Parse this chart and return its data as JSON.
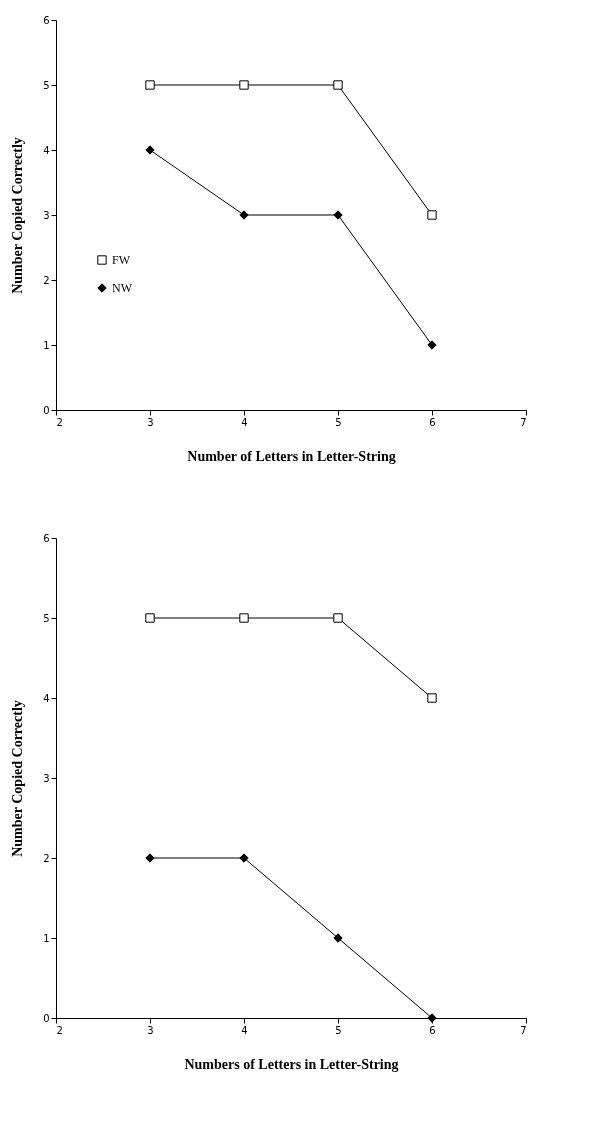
{
  "chart_data": [
    {
      "type": "line",
      "xlabel": "Number of Letters in Letter-String",
      "ylabel": "Number Copied Correctly",
      "xlim": [
        2,
        7
      ],
      "xticks": [
        2,
        3,
        4,
        5,
        6,
        7
      ],
      "ylim": [
        0,
        6
      ],
      "yticks": [
        0,
        1,
        2,
        3,
        4,
        5,
        6
      ],
      "grid": false,
      "legend": "left",
      "x": [
        3,
        4,
        5,
        6
      ],
      "series": [
        {
          "name": "FW",
          "color": "#000000",
          "marker": "square",
          "values": [
            5,
            5,
            5,
            3
          ]
        },
        {
          "name": "NW",
          "color": "#000000",
          "marker": "diamond",
          "values": [
            4,
            3,
            3,
            1
          ]
        }
      ]
    },
    {
      "type": "line",
      "xlabel": "Numbers of Letters in Letter-String",
      "ylabel": "Number Copied Correctly",
      "xlim": [
        2,
        7
      ],
      "xticks": [
        2,
        3,
        4,
        5,
        6,
        7
      ],
      "ylim": [
        0,
        6
      ],
      "yticks": [
        0,
        1,
        2,
        3,
        4,
        5,
        6
      ],
      "grid": false,
      "legend": "right",
      "x": [
        3,
        4,
        5,
        6
      ],
      "series": [
        {
          "name": "FW",
          "color": "#000000",
          "marker": "square",
          "values": [
            5,
            5,
            5,
            4
          ]
        },
        {
          "name": "NW",
          "color": "#000000",
          "marker": "diamond",
          "values": [
            2,
            2,
            1,
            0
          ]
        }
      ]
    }
  ]
}
